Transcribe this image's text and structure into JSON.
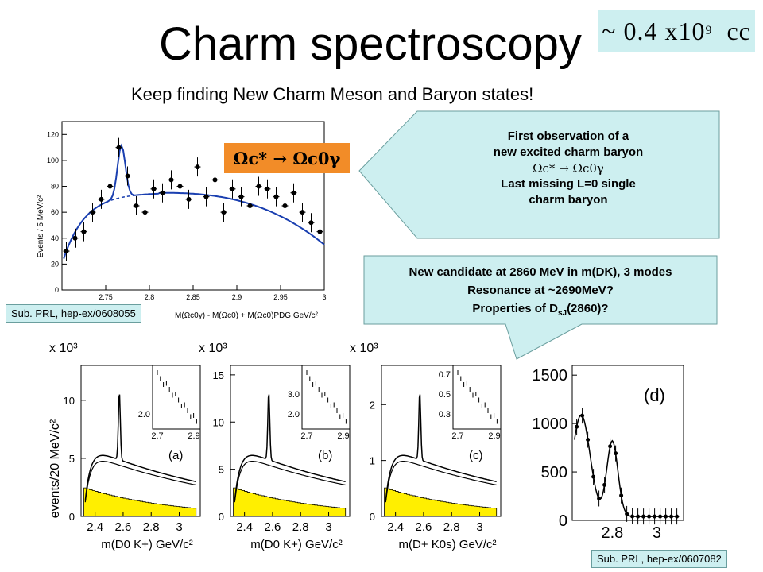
{
  "slide": {
    "title": "Charm spectroscopy",
    "subtitle": "Keep finding New Charm Meson and Baryon states!",
    "cc_count": {
      "text": "~ 0.4 x10",
      "exp": "9",
      "unit": "cc"
    }
  },
  "callout_baryon": {
    "line1": "First observation of a",
    "line2": "new excited charm baryon",
    "decay": "Ωc* → Ωc0γ",
    "line4": "Last missing L=0 single",
    "line5": "charm baryon"
  },
  "callout_meson": {
    "line1": "New candidate at 2860 MeV in m(DK), 3 modes",
    "line2": "Resonance at ~2690MeV?",
    "line3_prefix": "Properties of D",
    "line3_sub": "sJ",
    "line3_suffix": "(2860)?"
  },
  "refs": {
    "left": "Sub. PRL, hep-ex/0608055",
    "right": "Sub. PRL, hep-ex/0607082"
  },
  "decay_label": "Ωc* → Ωc0γ",
  "colors": {
    "accent_box": "#cdeff0",
    "orange": "#f28c28",
    "yellow_hist": "#ffef00",
    "fit_blue": "#1a3fb0"
  },
  "chart_data": [
    {
      "type": "scatter",
      "title": "",
      "ylabel": "Events / 5 MeV/c²",
      "xlabel": "M(Ωc0γ) - M(Ωc0) + M(Ωc0)PDG  GeV/c²",
      "xlim": [
        2.7,
        3.0
      ],
      "ylim": [
        0,
        130
      ],
      "x_ticks": [
        "2.75",
        "2.8",
        "2.85",
        "2.9",
        "2.95",
        "3"
      ],
      "y_ticks": [
        "0",
        "20",
        "40",
        "60",
        "80",
        "100",
        "120"
      ],
      "x": [
        2.705,
        2.715,
        2.725,
        2.735,
        2.745,
        2.755,
        2.765,
        2.775,
        2.785,
        2.795,
        2.805,
        2.815,
        2.825,
        2.835,
        2.845,
        2.855,
        2.865,
        2.875,
        2.885,
        2.895,
        2.905,
        2.915,
        2.925,
        2.935,
        2.945,
        2.955,
        2.965,
        2.975,
        2.985,
        2.995
      ],
      "y": [
        30,
        40,
        45,
        60,
        70,
        80,
        110,
        88,
        65,
        60,
        78,
        75,
        85,
        80,
        70,
        95,
        72,
        85,
        60,
        78,
        72,
        65,
        80,
        78,
        72,
        65,
        75,
        60,
        52,
        45
      ],
      "fit": "signal peak near 2.77 on smooth background"
    },
    {
      "type": "histogram",
      "panel": "(a)",
      "ylabel": "events/20 MeV/c²",
      "xlabel": "m(D0 K+) GeV/c²",
      "multiplier": "x 10³",
      "x_ticks": [
        "2.4",
        "2.6",
        "2.8",
        "3"
      ],
      "y_ticks": [
        "0",
        "5",
        "10"
      ],
      "inset": {
        "x_ticks": [
          "2.7",
          "2.9"
        ],
        "y_ticks": [
          "2.0"
        ]
      }
    },
    {
      "type": "histogram",
      "panel": "(b)",
      "xlabel": "m(D0 K+) GeV/c²",
      "multiplier": "x 10³",
      "x_ticks": [
        "2.4",
        "2.6",
        "2.8",
        "3"
      ],
      "y_ticks": [
        "0",
        "5",
        "10",
        "15"
      ],
      "inset": {
        "x_ticks": [
          "2.7",
          "2.9"
        ],
        "y_ticks": [
          "2.0",
          "3.0"
        ]
      }
    },
    {
      "type": "histogram",
      "panel": "(c)",
      "xlabel": "m(D+ K0s) GeV/c²",
      "multiplier": "x 10³",
      "x_ticks": [
        "2.4",
        "2.6",
        "2.8",
        "3"
      ],
      "y_ticks": [
        "0",
        "1",
        "2"
      ],
      "inset": {
        "x_ticks": [
          "2.7",
          "2.9"
        ],
        "y_ticks": [
          "0.3",
          "0.5",
          "0.7"
        ]
      }
    },
    {
      "type": "scatter",
      "panel": "(d)",
      "x_ticks": [
        "2.8",
        "3"
      ],
      "y_ticks": [
        "0",
        "500",
        "1000",
        "1500"
      ]
    }
  ]
}
